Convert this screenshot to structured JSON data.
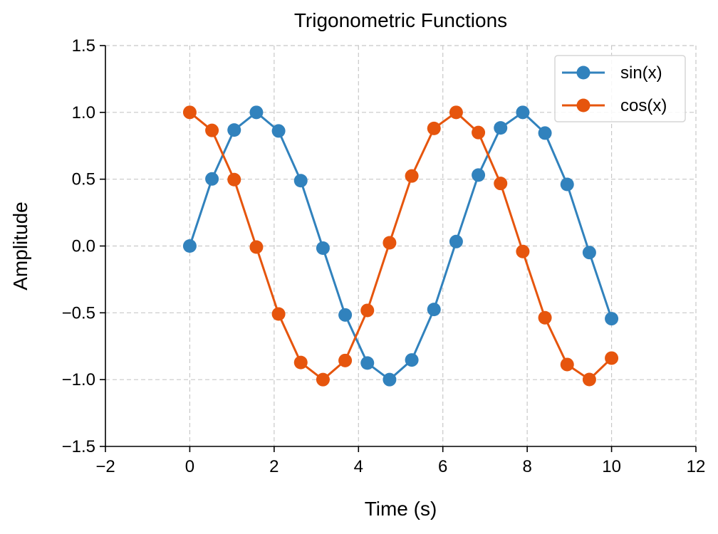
{
  "chart_data": {
    "type": "line",
    "title": "Trigonometric Functions",
    "xlabel": "Time (s)",
    "ylabel": "Amplitude",
    "xlim": [
      -2,
      12
    ],
    "ylim": [
      -1.5,
      1.5
    ],
    "xticks": [
      -2,
      0,
      2,
      4,
      6,
      8,
      10,
      12
    ],
    "yticks": [
      -1.5,
      -1.0,
      -0.5,
      0.0,
      0.5,
      1.0,
      1.5
    ],
    "grid": true,
    "grid_style": "dashed",
    "legend_position": "top-right",
    "x": [
      0,
      0.5263,
      1.0526,
      1.5789,
      2.1053,
      2.6316,
      3.1579,
      3.6842,
      4.2105,
      4.7368,
      5.2632,
      5.7895,
      6.3158,
      6.8421,
      7.3684,
      7.8947,
      8.4211,
      8.9474,
      9.4737,
      10.0
    ],
    "series": [
      {
        "name": "sin(x)",
        "color": "#3182bd",
        "marker": "circle",
        "values": [
          0.0,
          0.502,
          0.868,
          1.0,
          0.861,
          0.489,
          -0.016,
          -0.516,
          -0.876,
          -1.0,
          -0.853,
          -0.475,
          0.033,
          0.531,
          0.884,
          1.0,
          0.845,
          0.461,
          -0.049,
          -0.544
        ]
      },
      {
        "name": "cos(x)",
        "color": "#e6550d",
        "marker": "circle",
        "values": [
          1.0,
          0.865,
          0.497,
          -0.008,
          -0.509,
          -0.872,
          -1.0,
          -0.857,
          -0.482,
          0.024,
          0.524,
          0.88,
          1.0,
          0.849,
          0.468,
          -0.041,
          -0.537,
          -0.887,
          -0.999,
          -0.839
        ]
      }
    ]
  }
}
